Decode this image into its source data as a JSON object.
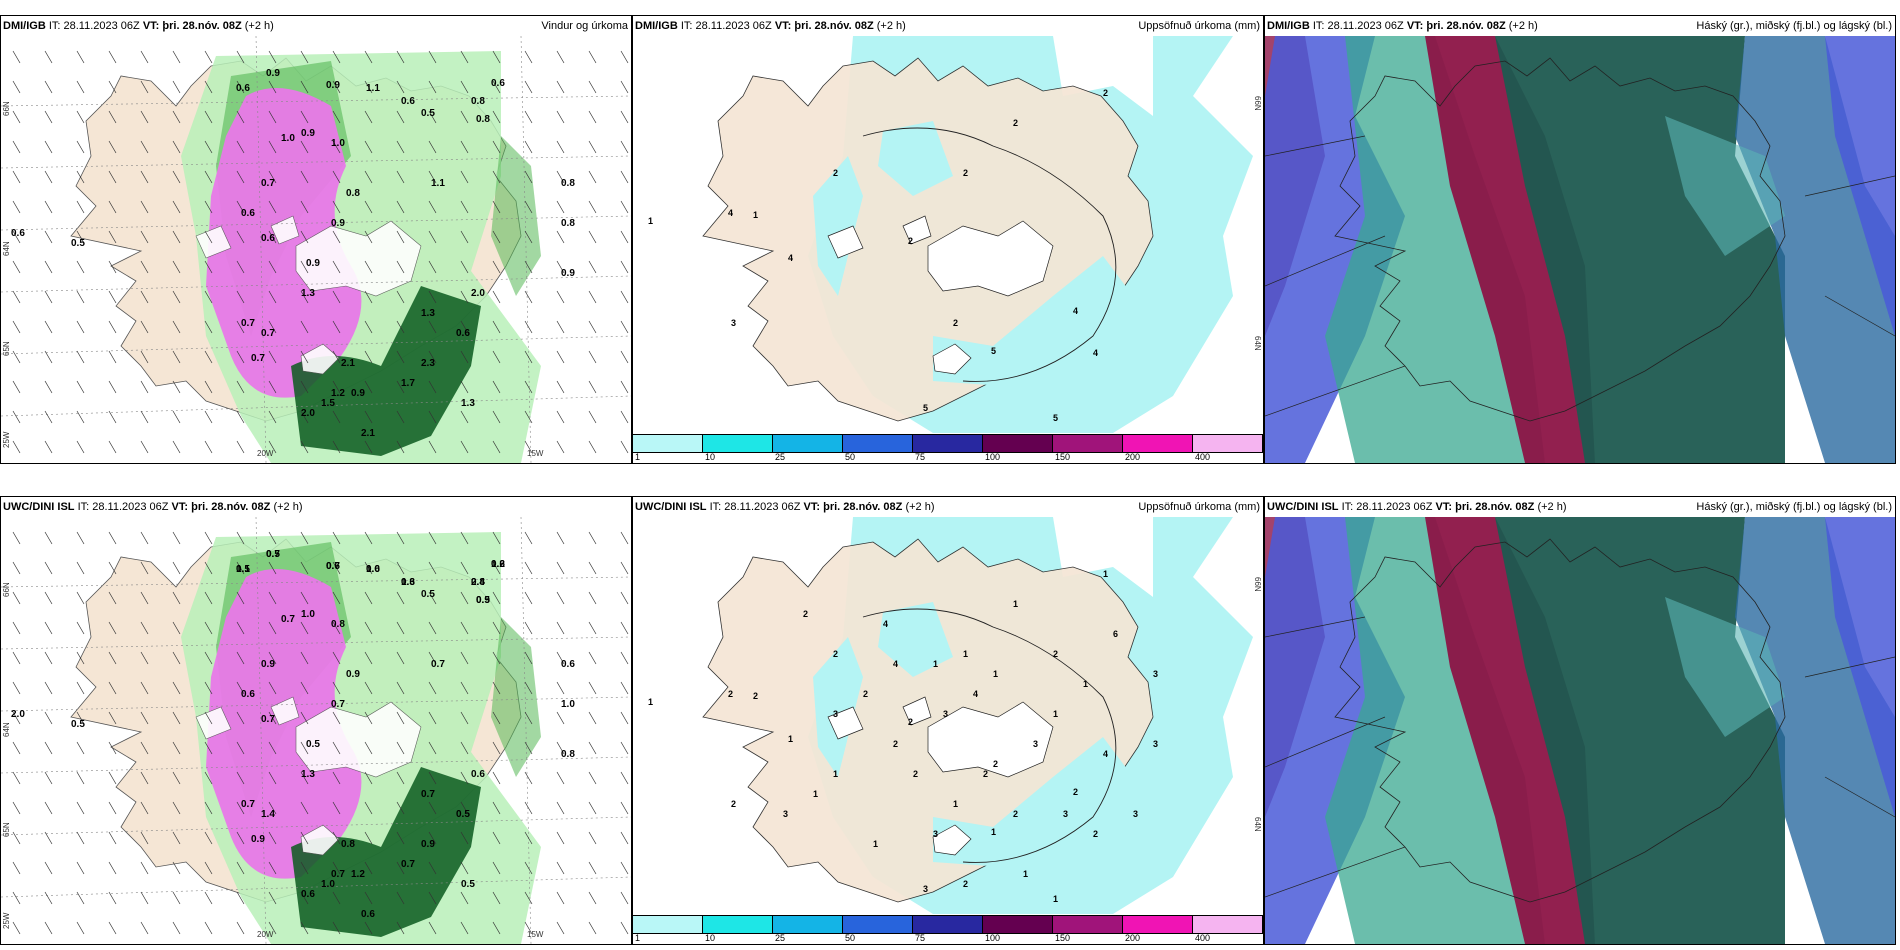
{
  "rows": [
    {
      "panels": [
        {
          "model": "DMI/IGB",
          "it": "IT: 28.11.2023 06Z",
          "vt_label": "VT:",
          "vt_value": "þri. 28.nóv. 08Z",
          "lead": "(+2 h)",
          "title": "Vindur og úrkoma",
          "kind": "wind",
          "labels": [
            "0.9",
            "0.6",
            "0.9",
            "1.1",
            "0.6",
            "0.8",
            "0.8",
            "0.6",
            "0.9",
            "1.0",
            "0.7",
            "1.0",
            "0.6",
            "0.8",
            "0.9",
            "0.9",
            "0.6",
            "0.5",
            "0.8",
            "0.9",
            "0.7",
            "1.1",
            "1.3",
            "0.7",
            "2.0",
            "1.3",
            "0.7",
            "2.1",
            "0.6",
            "0.8",
            "1.2",
            "0.9",
            "2.3",
            "2.1",
            "1.3",
            "2.0",
            "1.5",
            "1.7",
            "0.6",
            "0.5"
          ],
          "axis": [
            "66N",
            "65N",
            "64N",
            "20W",
            "15W",
            "25W"
          ]
        },
        {
          "model": "DMI/IGB",
          "it": "IT: 28.11.2023 06Z",
          "vt_label": "VT:",
          "vt_value": "þri. 28.nóv. 08Z",
          "lead": "(+2 h)",
          "title": "Uppsöfnuð úrkoma (mm)",
          "kind": "precip",
          "labels": [
            "2",
            "2",
            "2",
            "2",
            "1",
            "4",
            "2",
            "4",
            "3",
            "2",
            "4",
            "5",
            "4",
            "1",
            "5",
            "5"
          ],
          "axis": [
            "66N",
            "64N"
          ]
        },
        {
          "model": "DMI/IGB",
          "it": "IT: 28.11.2023 06Z",
          "vt_label": "VT:",
          "vt_value": "þri. 28.nóv. 08Z",
          "lead": "(+2 h)",
          "title": "Háský (gr.), miðský (fj.bl.) og lágský (bl.)",
          "kind": "cloud",
          "labels": [],
          "axis": []
        }
      ]
    },
    {
      "panels": [
        {
          "model": "UWC/DINI ISL",
          "it": "IT: 28.11.2023 06Z",
          "vt_label": "VT:",
          "vt_value": "þri. 28.nóv. 08Z",
          "lead": "(+2 h)",
          "title": "",
          "kind": "wind",
          "labels": [
            "0.5",
            "1.1",
            "0.6",
            "1.0",
            "0.6",
            "0.8",
            "0.5",
            "0.6",
            "1.0",
            "0.7",
            "0.9",
            "0.8",
            "0.6",
            "0.9",
            "0.7",
            "0.5",
            "0.7",
            "0.5",
            "1.0",
            "0.8",
            "0.7",
            "0.7",
            "1.3",
            "1.4",
            "0.6",
            "0.7",
            "0.9",
            "0.8",
            "0.5",
            "0.6",
            "0.7",
            "1.2",
            "0.9",
            "0.6",
            "0.5",
            "0.6",
            "1.0",
            "0.7",
            "2.0",
            "0.5",
            "0.7",
            "0.5",
            "0.7",
            "0.6",
            "1.3",
            "2.4",
            "0.9",
            "1.2"
          ],
          "axis": [
            "66N",
            "65N",
            "64N",
            "20W",
            "15W",
            "25W"
          ]
        },
        {
          "model": "UWC/DINI ISL",
          "it": "IT: 28.11.2023 06Z",
          "vt_label": "VT:",
          "vt_value": "þri. 28.nóv. 08Z",
          "lead": "(+2 h)",
          "title": "Uppsöfnuð úrkoma (mm)",
          "kind": "precip",
          "labels": [
            "1",
            "1",
            "2",
            "1",
            "2",
            "2",
            "2",
            "1",
            "2",
            "1",
            "2",
            "1",
            "2",
            "1",
            "3",
            "1",
            "1",
            "2",
            "2",
            "1",
            "2",
            "3",
            "1",
            "1",
            "4",
            "3",
            "3",
            "2",
            "1",
            "1",
            "3",
            "4",
            "4",
            "2",
            "2",
            "2",
            "6",
            "3",
            "2",
            "4",
            "3",
            "3",
            "1",
            "1",
            "3",
            "2",
            "3"
          ],
          "axis": [
            "66N",
            "64N"
          ]
        },
        {
          "model": "UWC/DINI ISL",
          "it": "IT: 28.11.2023 06Z",
          "vt_label": "VT:",
          "vt_value": "þri. 28.nóv. 08Z",
          "lead": "(+2 h)",
          "title": "Háský (gr.), miðský (fj.bl.) og lágský (bl.)",
          "kind": "cloud",
          "labels": [],
          "axis": []
        }
      ]
    }
  ],
  "colorbar": {
    "ticks": [
      "1",
      "10",
      "25",
      "50",
      "75",
      "100",
      "150",
      "200",
      "400"
    ],
    "colors": [
      "#b9f7f7",
      "#1ee6e6",
      "#14b4e6",
      "#2864dc",
      "#2828a0",
      "#640050",
      "#a0147a",
      "#f014b4",
      "#f5b4f0"
    ]
  },
  "colors": {
    "land": "#f5e6d5",
    "sea": "#ffffff",
    "precip_light": "#b4f4f4",
    "green_light": "#b8f0b8",
    "green_mid": "#55b855",
    "green_dark": "#0a5a1e",
    "magenta": "#e878e8",
    "teal": "#1e5a50",
    "crimson": "#8c1446",
    "blue": "#4a5ad8"
  }
}
